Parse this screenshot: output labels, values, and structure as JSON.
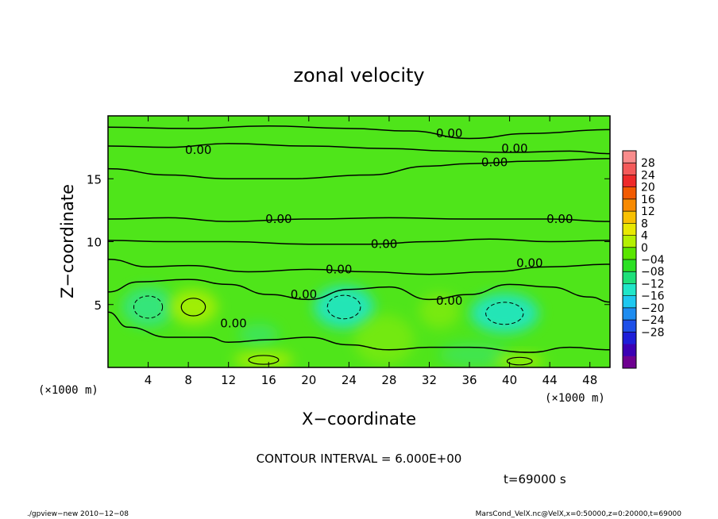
{
  "chart_data": {
    "type": "heatmap",
    "title": "zonal velocity",
    "xlabel": "X−coordinate",
    "ylabel": "Z−coordinate",
    "x_unit_left": "(×1000 m)",
    "x_unit_right": "(×1000 m)",
    "xlim": [
      0,
      50
    ],
    "ylim": [
      0,
      20
    ],
    "x_ticks": [
      4,
      8,
      12,
      16,
      20,
      24,
      28,
      32,
      36,
      40,
      44,
      48
    ],
    "y_ticks": [
      5,
      10,
      15
    ],
    "contour_interval_text": "CONTOUR INTERVAL = 6.000E+00",
    "time_text": "t=69000 s",
    "contour_label_text": "0.00",
    "contour_labels": [
      {
        "x": 9,
        "z": 17.3
      },
      {
        "x": 34,
        "z": 18.6
      },
      {
        "x": 40.5,
        "z": 17.4
      },
      {
        "x": 38.5,
        "z": 16.3
      },
      {
        "x": 17,
        "z": 11.8
      },
      {
        "x": 45,
        "z": 11.8
      },
      {
        "x": 27.5,
        "z": 9.8
      },
      {
        "x": 23,
        "z": 7.8
      },
      {
        "x": 42,
        "z": 8.3
      },
      {
        "x": 19.5,
        "z": 5.8
      },
      {
        "x": 34,
        "z": 5.3
      },
      {
        "x": 12.5,
        "z": 3.5
      }
    ],
    "colorbar": {
      "ticks": [
        "28",
        "24",
        "20",
        "16",
        "12",
        "8",
        "4",
        "0",
        "−04",
        "−08",
        "−12",
        "−16",
        "−20",
        "−24",
        "−28"
      ],
      "colors": [
        "#f98c8c",
        "#f45a5a",
        "#ee2a2a",
        "#f25a00",
        "#f88a00",
        "#f8c000",
        "#e8e800",
        "#b4f000",
        "#5ae600",
        "#2ce024",
        "#1ee07a",
        "#20e6c8",
        "#1ec8f0",
        "#1e8cf0",
        "#1e50e8",
        "#1e1ed8",
        "#3c00b4",
        "#6e0090"
      ]
    },
    "background_color": "#4fe51a",
    "cold_cells": [
      {
        "x": 4,
        "z": 4.8,
        "rx": 2.6,
        "rz": 1.6,
        "strength": 0.55
      },
      {
        "x": 23.5,
        "z": 4.8,
        "rx": 3.0,
        "rz": 1.7,
        "strength": 0.9
      },
      {
        "x": 39.5,
        "z": 4.3,
        "rx": 3.4,
        "rz": 1.6,
        "strength": 0.9
      },
      {
        "x": 36.5,
        "z": 1.0,
        "rx": 3.5,
        "rz": 1.0,
        "strength": 0.3
      },
      {
        "x": 15,
        "z": 2.6,
        "rx": 2.0,
        "rz": 0.9,
        "strength": 0.35
      }
    ],
    "warm_cells": [
      {
        "x": 8.5,
        "z": 4.8,
        "rx": 2.4,
        "rz": 1.4,
        "strength": 0.8
      },
      {
        "x": 15.5,
        "z": 0.6,
        "rx": 3.0,
        "rz": 0.7,
        "strength": 0.8
      },
      {
        "x": 27.5,
        "z": 2.2,
        "rx": 3.0,
        "rz": 2.0,
        "strength": 0.35
      },
      {
        "x": 41,
        "z": 0.5,
        "rx": 2.5,
        "rz": 0.6,
        "strength": 0.7
      },
      {
        "x": 33,
        "z": 4.5,
        "rx": 2.0,
        "rz": 1.4,
        "strength": 0.4
      }
    ],
    "contour_lines": [
      [
        [
          0,
          19.1
        ],
        [
          8,
          19.0
        ],
        [
          16,
          19.2
        ],
        [
          24,
          19.0
        ],
        [
          30,
          18.8
        ],
        [
          36,
          18.2
        ],
        [
          42,
          18.6
        ],
        [
          50,
          18.9
        ]
      ],
      [
        [
          0,
          17.6
        ],
        [
          6,
          17.5
        ],
        [
          12,
          17.8
        ],
        [
          20,
          17.6
        ],
        [
          28,
          17.4
        ],
        [
          34,
          17.2
        ],
        [
          40,
          17.1
        ],
        [
          46,
          17.2
        ],
        [
          50,
          17.0
        ]
      ],
      [
        [
          0,
          15.8
        ],
        [
          6,
          15.3
        ],
        [
          12,
          15.0
        ],
        [
          18,
          15.0
        ],
        [
          26,
          15.3
        ],
        [
          32,
          16.0
        ],
        [
          36,
          16.2
        ],
        [
          42,
          16.4
        ],
        [
          50,
          16.6
        ]
      ],
      [
        [
          0,
          11.8
        ],
        [
          6,
          11.9
        ],
        [
          12,
          11.6
        ],
        [
          20,
          11.8
        ],
        [
          28,
          11.9
        ],
        [
          36,
          11.8
        ],
        [
          44,
          11.8
        ],
        [
          50,
          11.6
        ]
      ],
      [
        [
          0,
          10.1
        ],
        [
          6,
          10.0
        ],
        [
          12,
          10.0
        ],
        [
          20,
          9.8
        ],
        [
          26,
          9.8
        ],
        [
          32,
          10.0
        ],
        [
          38,
          10.2
        ],
        [
          44,
          10.0
        ],
        [
          50,
          10.1
        ]
      ],
      [
        [
          0,
          8.6
        ],
        [
          4,
          8.0
        ],
        [
          8,
          8.1
        ],
        [
          14,
          7.6
        ],
        [
          20,
          7.8
        ],
        [
          26,
          7.6
        ],
        [
          32,
          7.4
        ],
        [
          38,
          7.6
        ],
        [
          44,
          8.0
        ],
        [
          50,
          8.2
        ]
      ],
      [
        [
          0,
          6.0
        ],
        [
          3,
          6.8
        ],
        [
          8,
          7.0
        ],
        [
          12,
          6.6
        ],
        [
          16,
          5.8
        ],
        [
          20,
          5.4
        ],
        [
          24,
          6.2
        ],
        [
          28,
          6.4
        ],
        [
          32,
          5.4
        ],
        [
          36,
          5.8
        ],
        [
          40,
          6.6
        ],
        [
          44,
          6.4
        ],
        [
          48,
          5.6
        ],
        [
          50,
          5.2
        ]
      ],
      [
        [
          0,
          4.4
        ],
        [
          2,
          3.2
        ],
        [
          6,
          2.4
        ],
        [
          10,
          2.4
        ],
        [
          12,
          2.0
        ],
        [
          16,
          2.2
        ],
        [
          20,
          2.4
        ],
        [
          24,
          1.8
        ],
        [
          28,
          1.4
        ],
        [
          32,
          1.6
        ],
        [
          36,
          1.6
        ],
        [
          42,
          1.2
        ],
        [
          46,
          1.6
        ],
        [
          50,
          1.4
        ]
      ]
    ]
  },
  "footer": {
    "left": "./gpview−new   2010−12−08",
    "right": "MarsCond_VelX.nc@VelX,x=0:50000,z=0:20000,t=69000"
  }
}
